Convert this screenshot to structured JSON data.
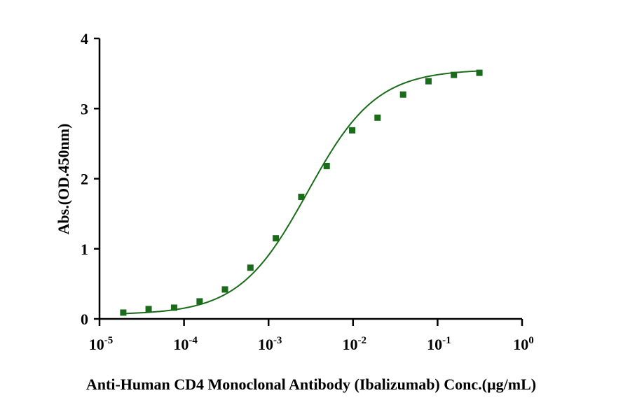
{
  "chart_data": {
    "type": "scatter",
    "title": "",
    "xlabel": "Anti-Human CD4 Monoclonal Antibody (Ibalizumab)  Conc.(µg/mL)",
    "ylabel": "Abs.(OD.450nm)",
    "x_scale": "log",
    "xlim": [
      1e-05,
      1
    ],
    "ylim": [
      0,
      4
    ],
    "x_ticks": [
      {
        "base": "10",
        "exp": "-5"
      },
      {
        "base": "10",
        "exp": "-4"
      },
      {
        "base": "10",
        "exp": "-3"
      },
      {
        "base": "10",
        "exp": "-2"
      },
      {
        "base": "10",
        "exp": "-1"
      },
      {
        "base": "10",
        "exp": "0"
      }
    ],
    "y_ticks": [
      "0",
      "1",
      "2",
      "3",
      "4"
    ],
    "grid": false,
    "legend": "none",
    "color": "#1a6b1a",
    "series": [
      {
        "marker": "square",
        "x": [
          1.91e-05,
          3.81e-05,
          7.63e-05,
          0.000153,
          0.000305,
          0.00061,
          0.00122,
          0.00244,
          0.00488,
          0.00977,
          0.0195,
          0.0391,
          0.0781,
          0.156,
          0.3125
        ],
        "y": [
          0.09,
          0.14,
          0.16,
          0.25,
          0.42,
          0.73,
          1.15,
          1.74,
          2.18,
          2.69,
          2.87,
          3.2,
          3.39,
          3.48,
          3.51
        ]
      }
    ],
    "fit_curve": {
      "model": "4PL",
      "bottom": 0.06,
      "top": 3.56,
      "ec50": 0.0029,
      "hill": 1.07
    }
  }
}
